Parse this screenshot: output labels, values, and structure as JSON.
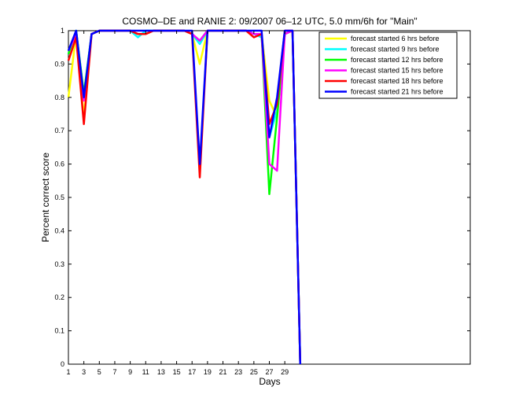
{
  "chart_data": {
    "type": "line",
    "title": "COSMO–DE and RANIE 2: 09/2007 06–12 UTC, 5.0 mm/6h for \"Main\"",
    "xlabel": "Days",
    "ylabel": "Percent correct score",
    "xlim": [
      1,
      53
    ],
    "ylim": [
      0,
      1
    ],
    "xticks": [
      1,
      3,
      5,
      7,
      9,
      11,
      13,
      15,
      17,
      19,
      21,
      23,
      25,
      27,
      29
    ],
    "yticks": [
      0,
      0.1,
      0.2,
      0.3,
      0.4,
      0.5,
      0.6,
      0.7,
      0.8,
      0.9,
      1
    ],
    "ytick_labels": [
      "0",
      "0.1",
      "0.2",
      "0.3",
      "0.4",
      "0.5",
      "0.6",
      "0.7",
      "0.8",
      "0.9",
      "1"
    ],
    "grid": false,
    "legend_position": "top-right",
    "x": [
      1,
      2,
      3,
      4,
      5,
      6,
      7,
      8,
      9,
      10,
      11,
      12,
      13,
      14,
      15,
      16,
      17,
      18,
      19,
      20,
      21,
      22,
      23,
      24,
      25,
      26,
      27,
      28,
      29,
      30,
      31
    ],
    "series": [
      {
        "name": "forecast started 6 hrs before",
        "color": "#ffff00",
        "values": [
          0.8,
          0.99,
          0.74,
          0.99,
          1,
          1,
          1,
          1,
          1,
          0.99,
          0.99,
          1,
          1,
          1,
          1,
          1,
          0.99,
          0.9,
          1,
          1,
          1,
          1,
          1,
          1,
          0.99,
          0.99,
          0.79,
          0.74,
          0.99,
          1,
          0
        ]
      },
      {
        "name": "forecast started 9 hrs before",
        "color": "#00ffff",
        "values": [
          0.93,
          1,
          0.81,
          0.99,
          1,
          1,
          1,
          1,
          1,
          0.98,
          1,
          1,
          1,
          1,
          1,
          1,
          0.99,
          0.96,
          1,
          1,
          1,
          1,
          1,
          1,
          0.99,
          0.98,
          0.68,
          0.76,
          0.99,
          1,
          0
        ]
      },
      {
        "name": "forecast started 12 hrs before",
        "color": "#00ff00",
        "values": [
          0.93,
          1,
          0.81,
          0.99,
          1,
          1,
          1,
          1,
          1,
          0.99,
          0.99,
          1,
          1,
          1,
          1,
          1,
          0.99,
          0.97,
          1,
          1,
          1,
          1,
          1,
          1,
          0.99,
          0.99,
          0.51,
          0.74,
          0.99,
          1,
          0
        ]
      },
      {
        "name": "forecast started 15 hrs before",
        "color": "#ff00ff",
        "values": [
          0.94,
          0.99,
          0.79,
          0.99,
          1,
          1,
          1,
          1,
          1,
          0.99,
          0.99,
          1,
          1,
          1,
          1,
          1,
          0.99,
          0.97,
          1,
          1,
          1,
          1,
          1,
          1,
          0.99,
          0.99,
          0.6,
          0.58,
          0.99,
          1,
          0
        ]
      },
      {
        "name": "forecast started 18 hrs before",
        "color": "#ff0000",
        "values": [
          0.91,
          0.98,
          0.72,
          0.99,
          1,
          1,
          1,
          1,
          1,
          0.99,
          0.99,
          1,
          1,
          1,
          1,
          1,
          0.99,
          0.56,
          1,
          1,
          1,
          1,
          1,
          1,
          0.98,
          0.99,
          0.72,
          0.78,
          1,
          1,
          0
        ]
      },
      {
        "name": "forecast started 21 hrs before",
        "color": "#0000ff",
        "values": [
          0.94,
          1,
          0.8,
          0.99,
          1,
          1,
          1,
          1,
          1,
          1,
          1,
          1,
          1,
          1,
          1,
          1,
          1,
          0.6,
          1,
          1,
          1,
          1,
          1,
          1,
          1,
          1,
          0.68,
          0.8,
          1,
          1,
          0
        ]
      }
    ]
  }
}
